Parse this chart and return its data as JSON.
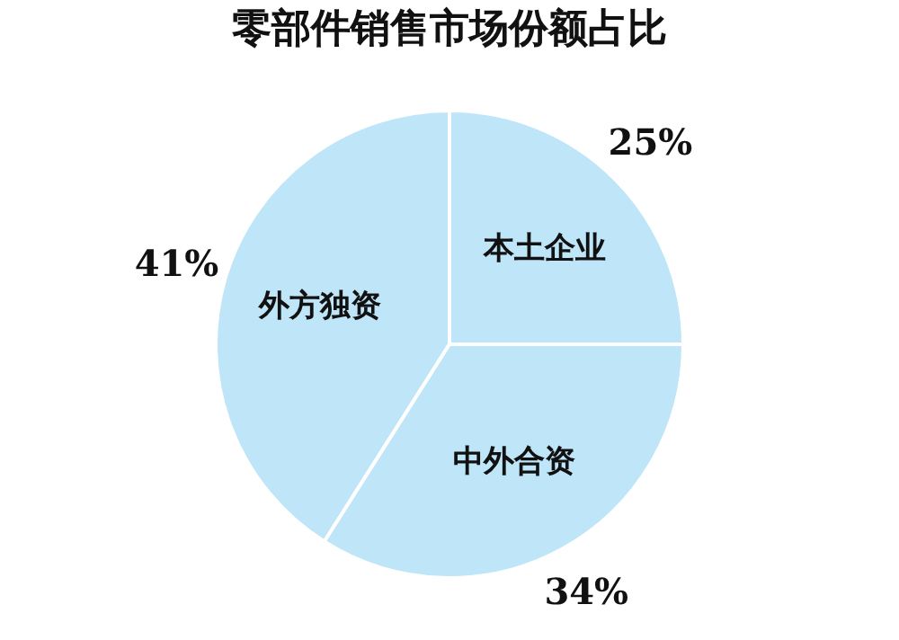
{
  "chart_data": {
    "type": "pie",
    "title": "零部件销售市场份额占比",
    "categories": [
      "外方独资",
      "本土企业",
      "中外合资"
    ],
    "values": [
      41,
      25,
      34
    ],
    "colors": [
      "#bfe5f8",
      "#bfe5f8",
      "#bfe5f8"
    ],
    "value_labels": [
      "41%",
      "25%",
      "34%"
    ],
    "legend": false
  }
}
